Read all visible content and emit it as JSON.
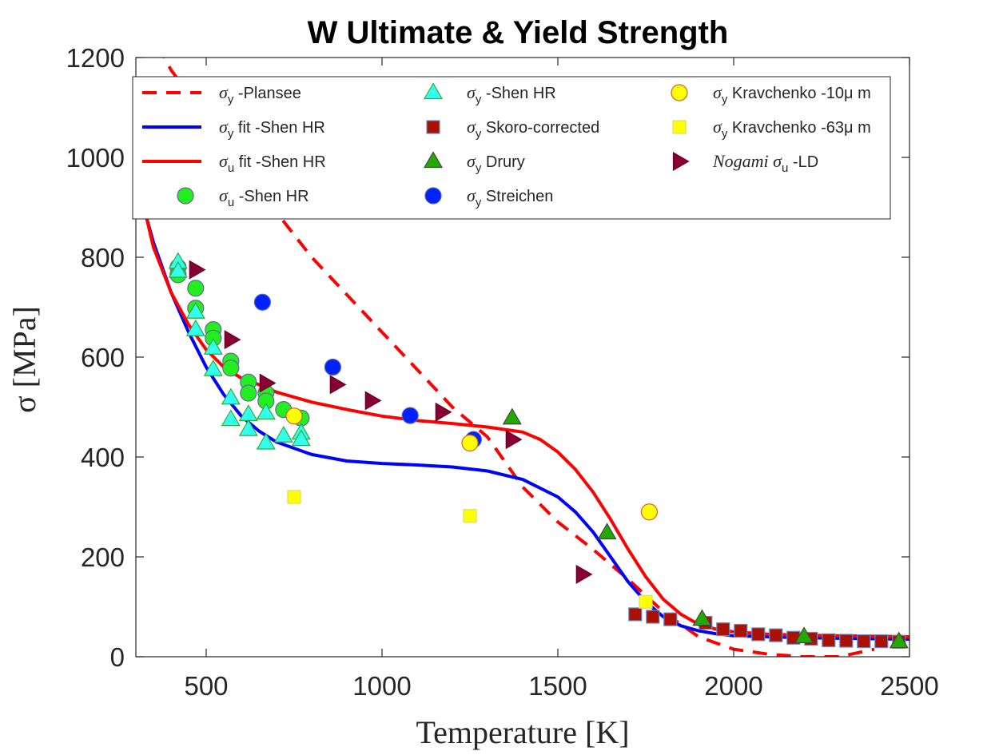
{
  "chart_data": {
    "type": "scatter",
    "title": "W Ultimate & Yield Strength",
    "xlabel": "Temperature [K]",
    "ylabel": "σ [MPa]",
    "xlim": [
      300,
      2500
    ],
    "ylim": [
      0,
      1200
    ],
    "xticks": [
      "500",
      "1000",
      "1500",
      "2000",
      "2500"
    ],
    "yticks": [
      "0",
      "200",
      "400",
      "600",
      "800",
      "1000",
      "1200"
    ],
    "xtick_values": [
      500,
      1000,
      1500,
      2000,
      2500
    ],
    "ytick_values": [
      0,
      200,
      400,
      600,
      800,
      1000,
      1200
    ],
    "grid": false,
    "legend_position": "top",
    "series": [
      {
        "name": "σy -Plansee",
        "label_main": "σ",
        "label_sub": "y",
        "label_rest": " -Plansee",
        "kind": "line",
        "dash": true,
        "color": "#ff0000",
        "x": [
          300,
          400,
          500,
          600,
          700,
          800,
          900,
          1000,
          1100,
          1200,
          1300,
          1400,
          1500,
          1600,
          1700,
          1800,
          1900,
          2000,
          2100,
          2200,
          2300,
          2400
        ],
        "y": [
          1310,
          1175,
          1080,
          985,
          890,
          800,
          725,
          650,
          575,
          500,
          440,
          340,
          270,
          215,
          155,
          90,
          40,
          15,
          5,
          0,
          0,
          15
        ]
      },
      {
        "name": "σy fit -Shen HR",
        "label_main": "σ",
        "label_sub": "y",
        "label_rest": " fit -Shen HR",
        "kind": "line",
        "dash": false,
        "color": "#0000ff",
        "x": [
          330,
          350,
          400,
          450,
          500,
          550,
          600,
          650,
          700,
          800,
          900,
          1000,
          1100,
          1200,
          1300,
          1400,
          1500,
          1550,
          1600,
          1650,
          1700,
          1750,
          1800,
          1850,
          1900,
          1950,
          2000,
          2100,
          2200,
          2300,
          2400,
          2500
        ],
        "y": [
          880,
          830,
          730,
          650,
          580,
          525,
          482,
          452,
          430,
          405,
          392,
          387,
          384,
          380,
          372,
          355,
          320,
          290,
          250,
          200,
          150,
          110,
          80,
          62,
          52,
          46,
          42,
          40,
          38,
          37,
          36,
          35
        ]
      },
      {
        "name": "σu fit -Shen HR",
        "label_main": "σ",
        "label_sub": "u",
        "label_rest": " fit -Shen HR",
        "kind": "line",
        "dash": false,
        "color": "#ff0000",
        "x": [
          330,
          350,
          400,
          450,
          500,
          550,
          600,
          650,
          700,
          800,
          900,
          1000,
          1100,
          1200,
          1300,
          1400,
          1450,
          1500,
          1550,
          1600,
          1650,
          1700,
          1750,
          1800,
          1850,
          1900,
          1950,
          2000,
          2100,
          2200,
          2300,
          2400,
          2500
        ],
        "y": [
          880,
          820,
          730,
          665,
          615,
          580,
          558,
          545,
          530,
          510,
          495,
          482,
          473,
          467,
          460,
          450,
          435,
          410,
          375,
          330,
          275,
          215,
          160,
          115,
          85,
          65,
          55,
          50,
          45,
          43,
          42,
          41,
          40
        ]
      },
      {
        "name": "σu -Shen HR",
        "label_main": "σ",
        "label_sub": "u",
        "label_rest": " -Shen HR",
        "kind": "marker",
        "shape": "circle",
        "fill": "#22ee22",
        "stroke": "#666699",
        "x": [
          420,
          420,
          470,
          470,
          520,
          520,
          570,
          570,
          620,
          620,
          670,
          670,
          720,
          770
        ],
        "y": [
          780,
          765,
          738,
          698,
          655,
          638,
          592,
          578,
          550,
          528,
          528,
          512,
          495,
          478
        ]
      },
      {
        "name": "σy -Shen HR",
        "label_main": "σ",
        "label_sub": "y",
        "label_rest": " -Shen HR",
        "kind": "marker",
        "shape": "triangle-up",
        "fill": "#33ffee",
        "stroke": "#33aa33",
        "x": [
          420,
          420,
          470,
          470,
          520,
          520,
          570,
          570,
          620,
          620,
          670,
          670,
          720,
          770,
          770
        ],
        "y": [
          790,
          772,
          690,
          655,
          618,
          575,
          518,
          475,
          485,
          455,
          488,
          428,
          442,
          448,
          435
        ]
      },
      {
        "name": "σy Skoro-corrected",
        "label_main": "σ",
        "label_sub": "y",
        "label_rest": " Skoro-corrected",
        "kind": "marker",
        "shape": "square",
        "fill": "#aa1100",
        "stroke": "#6688cc",
        "x": [
          1720,
          1770,
          1820,
          1920,
          1970,
          2020,
          2070,
          2120,
          2170,
          2220,
          2270,
          2320,
          2370,
          2420,
          2470
        ],
        "y": [
          85,
          80,
          75,
          68,
          55,
          52,
          45,
          43,
          38,
          36,
          33,
          32,
          31,
          31,
          30
        ]
      },
      {
        "name": "σy Drury",
        "label_main": "σ",
        "label_sub": "y",
        "label_rest": " Drury",
        "kind": "marker",
        "shape": "triangle-up",
        "fill": "#22aa00",
        "stroke": "#444444",
        "x": [
          1370,
          1640,
          1910,
          2200,
          2470
        ],
        "y": [
          478,
          248,
          75,
          40,
          30
        ]
      },
      {
        "name": "σy Streichen",
        "label_main": "σ",
        "label_sub": "y",
        "label_rest": " Streichen",
        "kind": "marker",
        "shape": "circle",
        "fill": "#0022ff",
        "stroke": "#5566aa",
        "x": [
          660,
          860,
          1080,
          1260
        ],
        "y": [
          710,
          580,
          483,
          435
        ]
      },
      {
        "name": "σy Kravchenko -10μ m",
        "label_main": "σ",
        "label_sub": "y",
        "label_rest": " Kravchenko -10μ m",
        "kind": "marker",
        "shape": "circle",
        "fill": "#ffff00",
        "stroke": "#cc6633",
        "x": [
          750,
          1250,
          1760
        ],
        "y": [
          482,
          428,
          290
        ]
      },
      {
        "name": "σy Kravchenko -63μ m",
        "label_main": "σ",
        "label_sub": "y",
        "label_rest": " Kravchenko -63μ m",
        "kind": "marker",
        "shape": "square",
        "fill": "#ffff00",
        "stroke": "#dddd66",
        "x": [
          750,
          1250,
          1750
        ],
        "y": [
          320,
          282,
          110
        ]
      },
      {
        "name": "Nogami σu -LD",
        "label_main": "Nogami σ",
        "label_sub": "u",
        "label_rest": " -LD",
        "kind": "marker",
        "shape": "triangle-right",
        "fill": "#880033",
        "stroke": "#660022",
        "x": [
          470,
          570,
          670,
          870,
          970,
          1170,
          1370,
          1570
        ],
        "y": [
          775,
          635,
          548,
          545,
          513,
          490,
          435,
          165
        ]
      }
    ]
  }
}
